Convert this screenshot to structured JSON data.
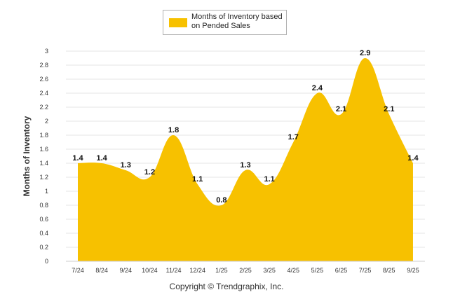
{
  "chart_data": {
    "type": "area",
    "categories": [
      "7/24",
      "8/24",
      "9/24",
      "10/24",
      "11/24",
      "12/24",
      "1/25",
      "2/25",
      "3/25",
      "4/25",
      "5/25",
      "6/25",
      "7/25",
      "8/25",
      "9/25"
    ],
    "series": [
      {
        "name": "Months of Inventory based on Pended Sales",
        "values": [
          1.4,
          1.4,
          1.3,
          1.2,
          1.8,
          1.1,
          0.8,
          1.3,
          1.1,
          1.7,
          2.4,
          2.1,
          2.9,
          2.1,
          1.4
        ]
      }
    ],
    "data_labels": [
      "1.4",
      "1.4",
      "1.3",
      "1.2",
      "1.8",
      "1.1",
      "0.8",
      "1.3",
      "1.1",
      "1.7",
      "2.4",
      "2.1",
      "2.9",
      "2.1",
      "1.4"
    ],
    "ylabel": "Months of Inventory",
    "xlabel": "",
    "ylim": [
      0,
      3
    ],
    "yticks": [
      0,
      0.2,
      0.4,
      0.6,
      0.8,
      1,
      1.2,
      1.4,
      1.6,
      1.8,
      2,
      2.2,
      2.4,
      2.6,
      2.8,
      3
    ],
    "ytick_labels": [
      "0",
      "0.2",
      "0.4",
      "0.6",
      "0.8",
      "1",
      "1.2",
      "1.4",
      "1.6",
      "1.8",
      "2",
      "2.2",
      "2.4",
      "2.6",
      "2.8",
      "3"
    ],
    "grid": true,
    "legend_position": "top-center",
    "fill_color": "#F7C100",
    "grid_color": "#e6e6e6"
  },
  "legend": {
    "label": "Months of Inventory based on Pended Sales"
  },
  "footer": {
    "copyright": "Copyright © Trendgraphix, Inc."
  }
}
